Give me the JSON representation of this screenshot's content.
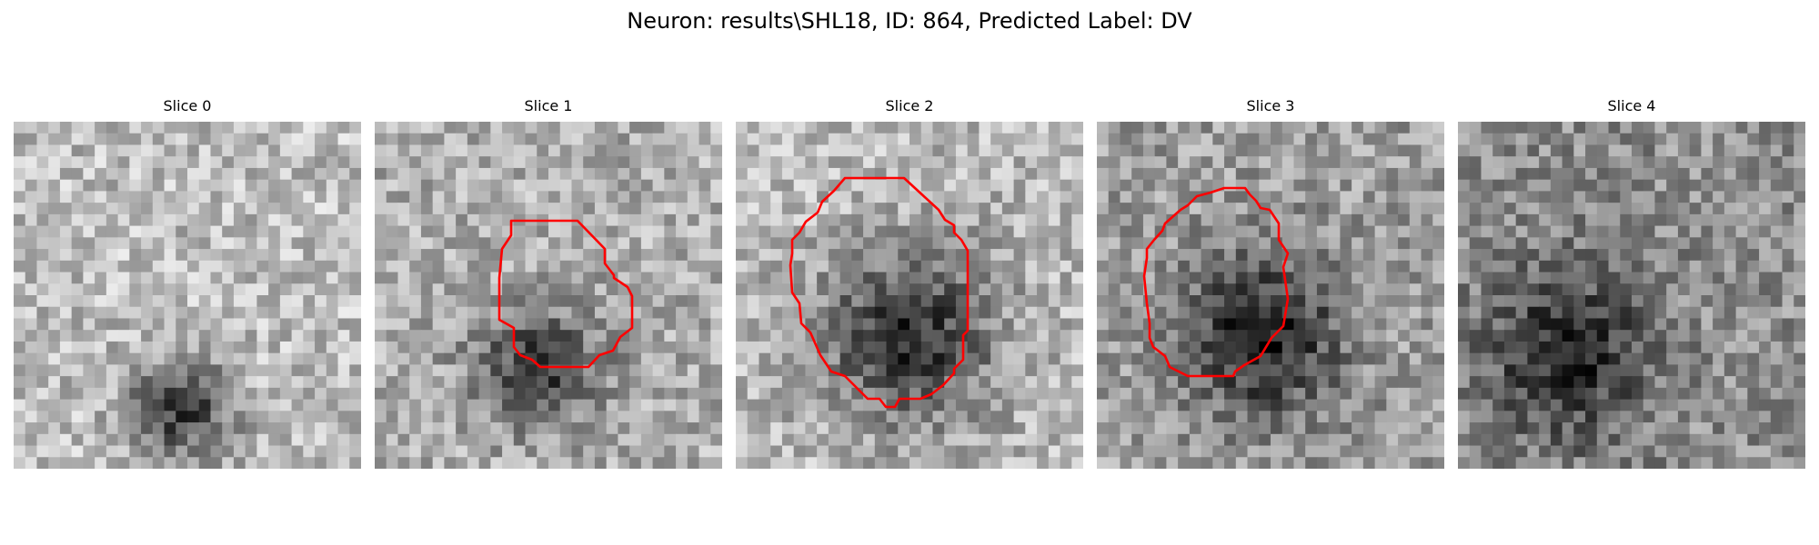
{
  "figure": {
    "title": "Neuron: results\\SHL18, ID: 864, Predicted Label: DV",
    "contour_color": "#ff0000"
  },
  "panels": [
    {
      "title": "Slice 0",
      "has_contour": false
    },
    {
      "title": "Slice 1",
      "has_contour": true
    },
    {
      "title": "Slice 2",
      "has_contour": true
    },
    {
      "title": "Slice 3",
      "has_contour": true
    },
    {
      "title": "Slice 4",
      "has_contour": false
    }
  ]
}
